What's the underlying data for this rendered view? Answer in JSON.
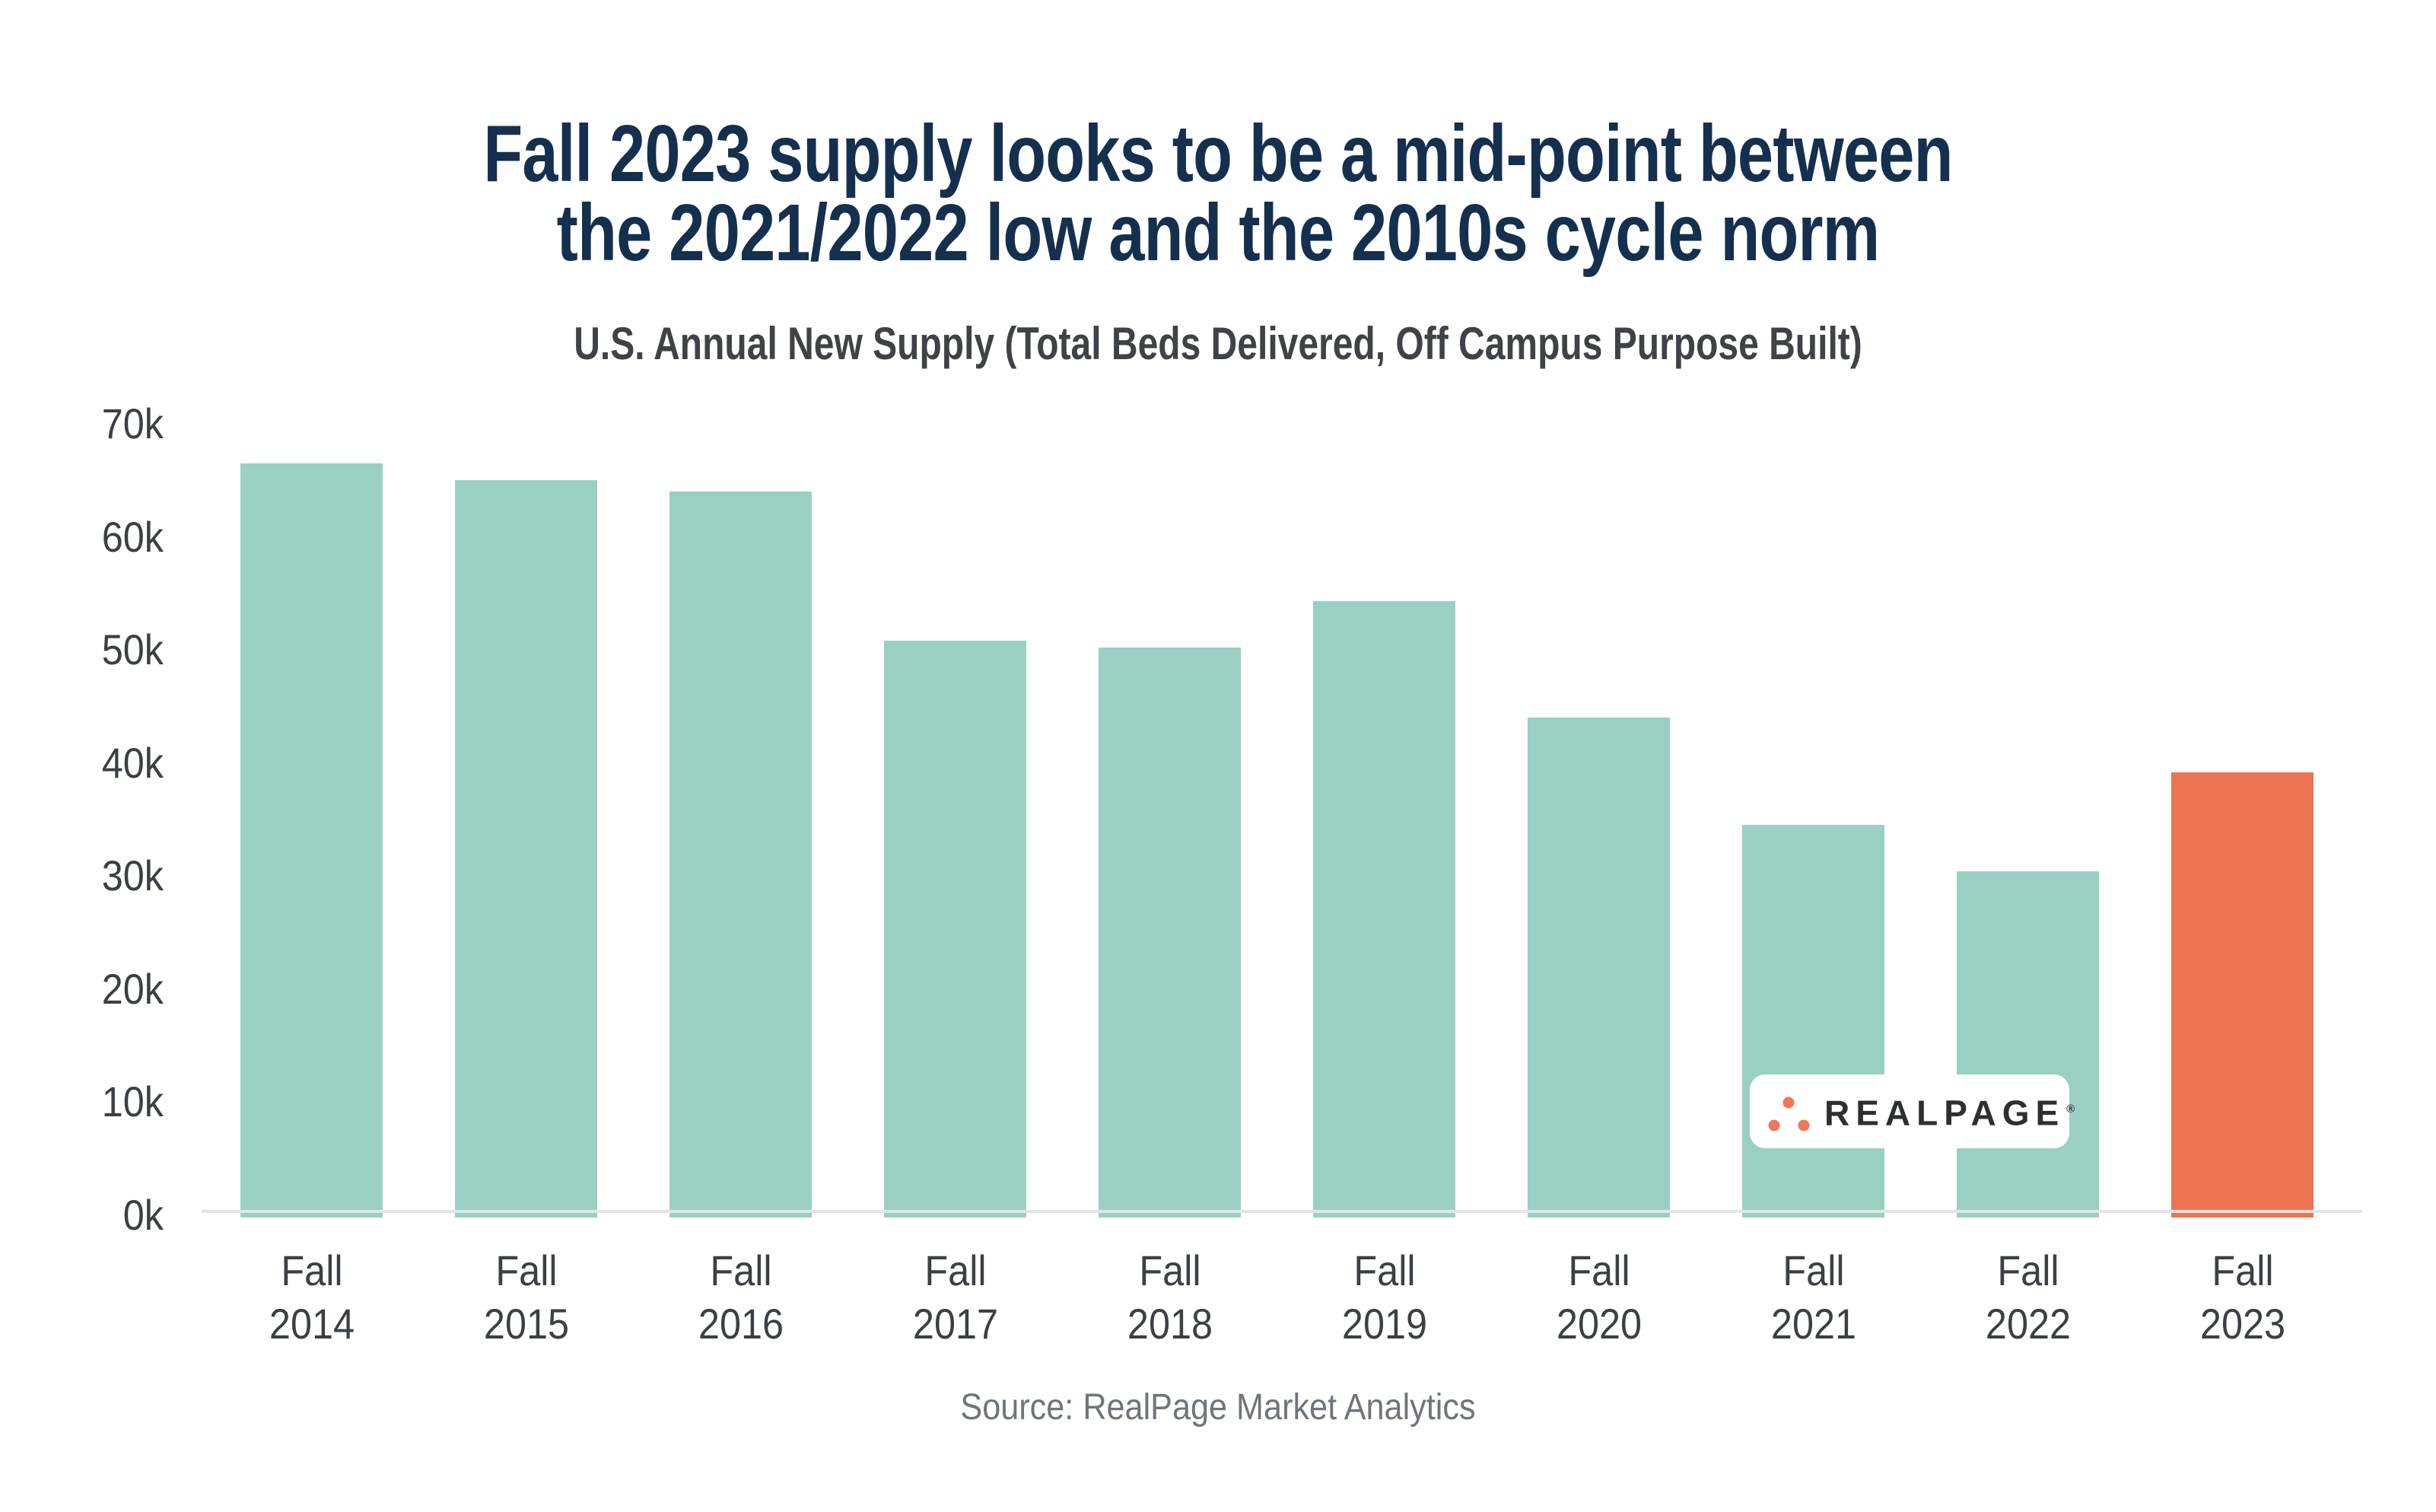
{
  "title": {
    "line1": "Fall 2023 supply looks to be a mid-point between",
    "line2": "the 2021/2022 low and the 2010s cycle norm"
  },
  "subtitle": "U.S. Annual New Supply (Total Beds Delivered, Off Campus Purpose Built)",
  "source": {
    "text": "Source: RealPage Market Analytics"
  },
  "logo": {
    "text": "REALPAGE",
    "registered": "®",
    "dots_icon": "realpage-triangle-dots-icon"
  },
  "colors": {
    "bar_default": "#9ad0c2",
    "bar_highlight": "#ed7452",
    "title_navy": "#15304e",
    "subtitle_gray": "#3f4347",
    "axis_text": "#3b4045",
    "axis_line": "#e4e4e8",
    "source_gray": "#6e757c",
    "logo_text": "#2d2f31",
    "logo_dots": "#f0785a",
    "background": "#ffffff"
  },
  "yaxis": {
    "labels": [
      "70k",
      "60k",
      "50k",
      "40k",
      "30k",
      "20k",
      "10k",
      "0k"
    ]
  },
  "chart_data": {
    "type": "bar",
    "title": "Fall 2023 supply looks to be a mid-point between the 2021/2022 low and the 2010s cycle norm",
    "subtitle": "U.S. Annual New Supply (Total Beds Delivered, Off Campus Purpose Built)",
    "categories": [
      "Fall 2014",
      "Fall 2015",
      "Fall 2016",
      "Fall 2017",
      "Fall 2018",
      "Fall 2019",
      "Fall 2020",
      "Fall 2021",
      "Fall 2022",
      "Fall 2023"
    ],
    "values": [
      66500,
      65000,
      64000,
      50800,
      50200,
      54300,
      44000,
      34500,
      30400,
      39200
    ],
    "highlight_index": 9,
    "xlabel": "",
    "ylabel": "Total Beds Delivered",
    "ylim": [
      0,
      70000
    ],
    "ytick_step": 10000,
    "grid": false,
    "legend": "none"
  }
}
